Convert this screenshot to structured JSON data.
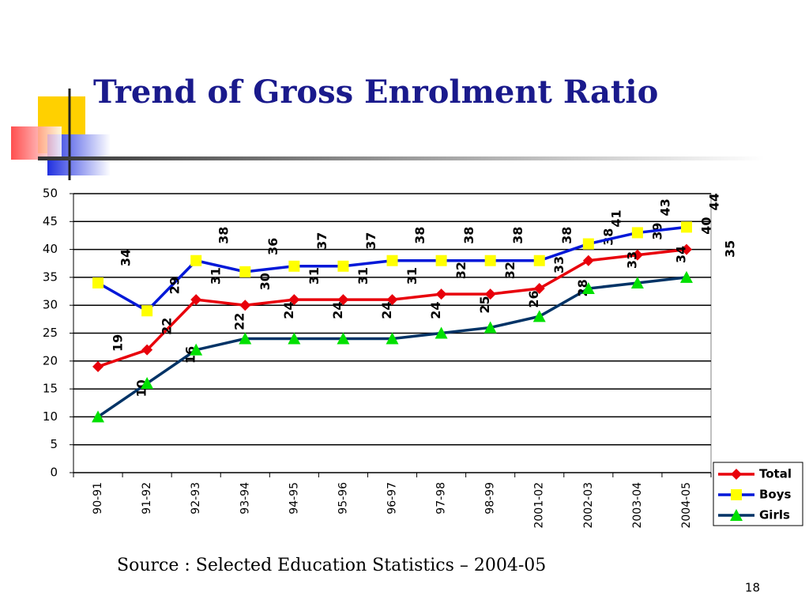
{
  "chart_data": {
    "type": "line",
    "title": "Trend of Gross Enrolment Ratio",
    "source": "Source : Selected Education Statistics –  2004-05",
    "categories": [
      "90-91",
      "91-92",
      "92-93",
      "93-94",
      "94-95",
      "95-96",
      "96-97",
      "97-98",
      "98-99",
      "2001-02",
      "2002-03",
      "2003-04",
      "2004-05"
    ],
    "series": [
      {
        "name": "Total",
        "color": "#e8000b",
        "marker": "diamond",
        "marker_color": "#e8000b",
        "values": [
          19,
          22,
          31,
          30,
          31,
          31,
          31,
          32,
          32,
          33,
          38,
          39,
          40
        ]
      },
      {
        "name": "Boys",
        "color": "#0018d8",
        "marker": "square",
        "marker_color": "#ffff00",
        "values": [
          34,
          29,
          38,
          36,
          37,
          37,
          38,
          38,
          38,
          38,
          41,
          43,
          44
        ]
      },
      {
        "name": "Girls",
        "color": "#003366",
        "marker": "triangle",
        "marker_color": "#00e000",
        "values": [
          10,
          16,
          22,
          24,
          24,
          24,
          24,
          25,
          26,
          28,
          33,
          34,
          35
        ]
      }
    ],
    "ylim": [
      0,
      50
    ],
    "yticks": [
      0,
      5,
      10,
      15,
      20,
      25,
      30,
      35,
      40,
      45,
      50
    ],
    "grid": true,
    "legend": "lower right",
    "data_labels": true
  },
  "slide": {
    "page_number": "18"
  }
}
